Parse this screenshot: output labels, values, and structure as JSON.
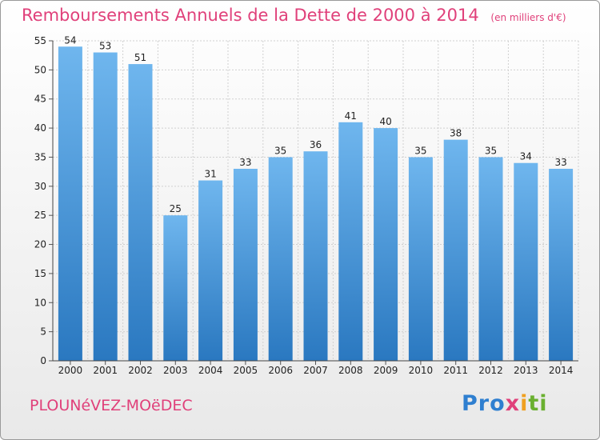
{
  "chart_data": {
    "type": "bar",
    "title": "Remboursements Annuels de la Dette de 2000 à 2014",
    "unit_note": "(en milliers d'€)",
    "categories": [
      "2000",
      "2001",
      "2002",
      "2003",
      "2004",
      "2005",
      "2006",
      "2007",
      "2008",
      "2009",
      "2010",
      "2011",
      "2012",
      "2013",
      "2014"
    ],
    "values": [
      54,
      53,
      51,
      25,
      31,
      33,
      35,
      36,
      41,
      40,
      35,
      38,
      35,
      34,
      33
    ],
    "ylim": [
      0,
      55
    ],
    "yticks": [
      0,
      5,
      10,
      15,
      20,
      25,
      30,
      35,
      40,
      45,
      50,
      55
    ],
    "grid": true,
    "bar_color": "#3d8fd6",
    "bar_color_light": "#6fb6ee"
  },
  "footer": {
    "commune": "PLOUNéVEZ-MOëDEC",
    "logo": [
      "Pro",
      "x",
      "i",
      "ti"
    ]
  }
}
